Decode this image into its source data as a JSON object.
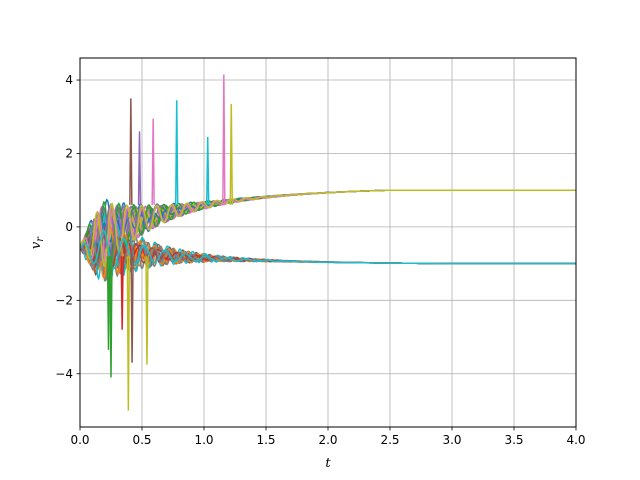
{
  "chart_data": {
    "type": "line",
    "title": "",
    "xlabel": "t",
    "ylabel_main": "v",
    "ylabel_sub": "r",
    "xlim": [
      0.0,
      4.0
    ],
    "ylim": [
      -5.45,
      4.6
    ],
    "grid": true,
    "x_ticks": [
      0.0,
      0.5,
      1.0,
      1.5,
      2.0,
      2.5,
      3.0,
      3.5,
      4.0
    ],
    "x_tick_labels": [
      "0.0",
      "0.5",
      "1.0",
      "1.5",
      "2.0",
      "2.5",
      "3.0",
      "3.5",
      "4.0"
    ],
    "y_ticks": [
      -4,
      -2,
      0,
      2,
      4
    ],
    "y_tick_labels": [
      "−4",
      "−2",
      "0",
      "2",
      "4"
    ],
    "series_colors": [
      "#1f77b4",
      "#ff7f0e",
      "#2ca02c",
      "#d62728",
      "#9467bd",
      "#8c564b",
      "#e377c2",
      "#7f7f7f",
      "#bcbd22",
      "#17becf"
    ],
    "series_summary": {
      "count_estimate": 40,
      "initial_value_range": [
        -0.6,
        -0.5
      ],
      "upper_branch_final": 1.0,
      "lower_branch_final": -1.0,
      "upper_branch_settle_t": 2.5,
      "lower_branch_settle_t": 3.0
    },
    "spikes": [
      {
        "t": 0.41,
        "v": 3.5,
        "color": "#8c564b"
      },
      {
        "t": 1.16,
        "v": 4.15,
        "color": "#e377c2"
      },
      {
        "t": 0.78,
        "v": 3.45,
        "color": "#17becf"
      },
      {
        "t": 1.22,
        "v": 3.35,
        "color": "#bcbd22"
      },
      {
        "t": 0.59,
        "v": 2.95,
        "color": "#e377c2"
      },
      {
        "t": 0.48,
        "v": 2.6,
        "color": "#9467bd"
      },
      {
        "t": 1.03,
        "v": 2.45,
        "color": "#17becf"
      },
      {
        "t": 0.39,
        "v": -5.0,
        "color": "#bcbd22"
      },
      {
        "t": 0.25,
        "v": -4.1,
        "color": "#2ca02c"
      },
      {
        "t": 0.54,
        "v": -3.75,
        "color": "#bcbd22"
      },
      {
        "t": 0.23,
        "v": -3.35,
        "color": "#2ca02c"
      },
      {
        "t": 0.42,
        "v": -3.7,
        "color": "#8c564b"
      },
      {
        "t": 0.34,
        "v": -2.8,
        "color": "#d62728"
      }
    ]
  }
}
